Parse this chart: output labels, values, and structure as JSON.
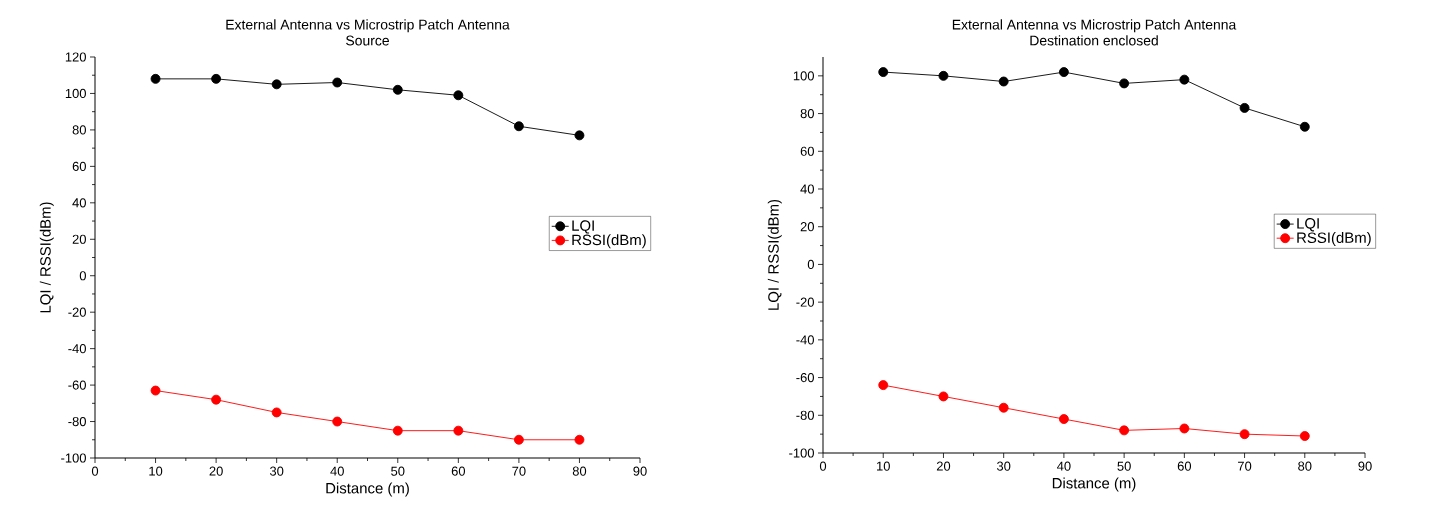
{
  "chart_data": [
    {
      "type": "line",
      "title": "External Antenna vs Microstrip Patch Antenna",
      "subtitle": "Source",
      "xlabel": "Distance (m)",
      "ylabel": "LQI / RSSI(dBm)",
      "x": [
        10,
        20,
        30,
        40,
        50,
        60,
        70,
        80
      ],
      "series": [
        {
          "name": "LQI",
          "color": "#000000",
          "values": [
            108,
            108,
            105,
            106,
            102,
            99,
            82,
            77
          ]
        },
        {
          "name": "RSSI(dBm)",
          "color": "#ff0000",
          "values": [
            -63,
            -68,
            -75,
            -80,
            -85,
            -85,
            -90,
            -90
          ]
        }
      ],
      "xlim": [
        0,
        90
      ],
      "ylim": [
        -100,
        120
      ],
      "xticks": [
        0,
        10,
        20,
        30,
        40,
        50,
        60,
        70,
        80,
        90
      ],
      "yticks": [
        -100,
        -80,
        -60,
        -40,
        -20,
        0,
        20,
        40,
        60,
        80,
        100,
        120
      ],
      "legend": "right",
      "marker": "circle",
      "line_style": "solid",
      "grid": false
    },
    {
      "type": "line",
      "title": "External Antenna vs Microstrip Patch Antenna",
      "subtitle": "Destination enclosed",
      "xlabel": "Distance (m)",
      "ylabel": "LQI / RSSI(dBm)",
      "x": [
        10,
        20,
        30,
        40,
        50,
        60,
        70,
        80
      ],
      "series": [
        {
          "name": "LQI",
          "color": "#000000",
          "values": [
            102,
            100,
            97,
            102,
            96,
            98,
            83,
            73
          ]
        },
        {
          "name": "RSSI(dBm)",
          "color": "#ff0000",
          "values": [
            -64,
            -70,
            -76,
            -82,
            -88,
            -87,
            -90,
            -91
          ]
        }
      ],
      "xlim": [
        0,
        90
      ],
      "ylim": [
        -100,
        110
      ],
      "xticks": [
        0,
        10,
        20,
        30,
        40,
        50,
        60,
        70,
        80,
        90
      ],
      "yticks": [
        -100,
        -80,
        -60,
        -40,
        -20,
        0,
        20,
        40,
        60,
        80,
        100
      ],
      "legend": "right",
      "marker": "circle",
      "line_style": "solid",
      "grid": false
    }
  ]
}
